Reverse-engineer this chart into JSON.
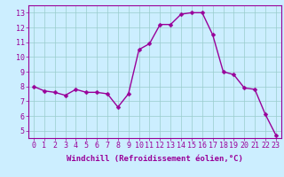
{
  "x": [
    0,
    1,
    2,
    3,
    4,
    5,
    6,
    7,
    8,
    9,
    10,
    11,
    12,
    13,
    14,
    15,
    16,
    17,
    18,
    19,
    20,
    21,
    22,
    23
  ],
  "y": [
    8.0,
    7.7,
    7.6,
    7.4,
    7.8,
    7.6,
    7.6,
    7.5,
    6.6,
    7.5,
    10.5,
    10.9,
    12.2,
    12.2,
    12.9,
    13.0,
    13.0,
    11.5,
    9.0,
    8.8,
    7.9,
    7.8,
    6.1,
    4.7
  ],
  "line_color": "#990099",
  "marker_color": "#990099",
  "bg_color": "#cceeff",
  "grid_color": "#99cccc",
  "xlabel": "Windchill (Refroidissement éolien,°C)",
  "xlim": [
    -0.5,
    23.5
  ],
  "ylim": [
    4.5,
    13.5
  ],
  "yticks": [
    5,
    6,
    7,
    8,
    9,
    10,
    11,
    12,
    13
  ],
  "xticks": [
    0,
    1,
    2,
    3,
    4,
    5,
    6,
    7,
    8,
    9,
    10,
    11,
    12,
    13,
    14,
    15,
    16,
    17,
    18,
    19,
    20,
    21,
    22,
    23
  ],
  "xlabel_fontsize": 6.5,
  "tick_fontsize": 6,
  "line_width": 1.0,
  "marker_size": 2.5
}
